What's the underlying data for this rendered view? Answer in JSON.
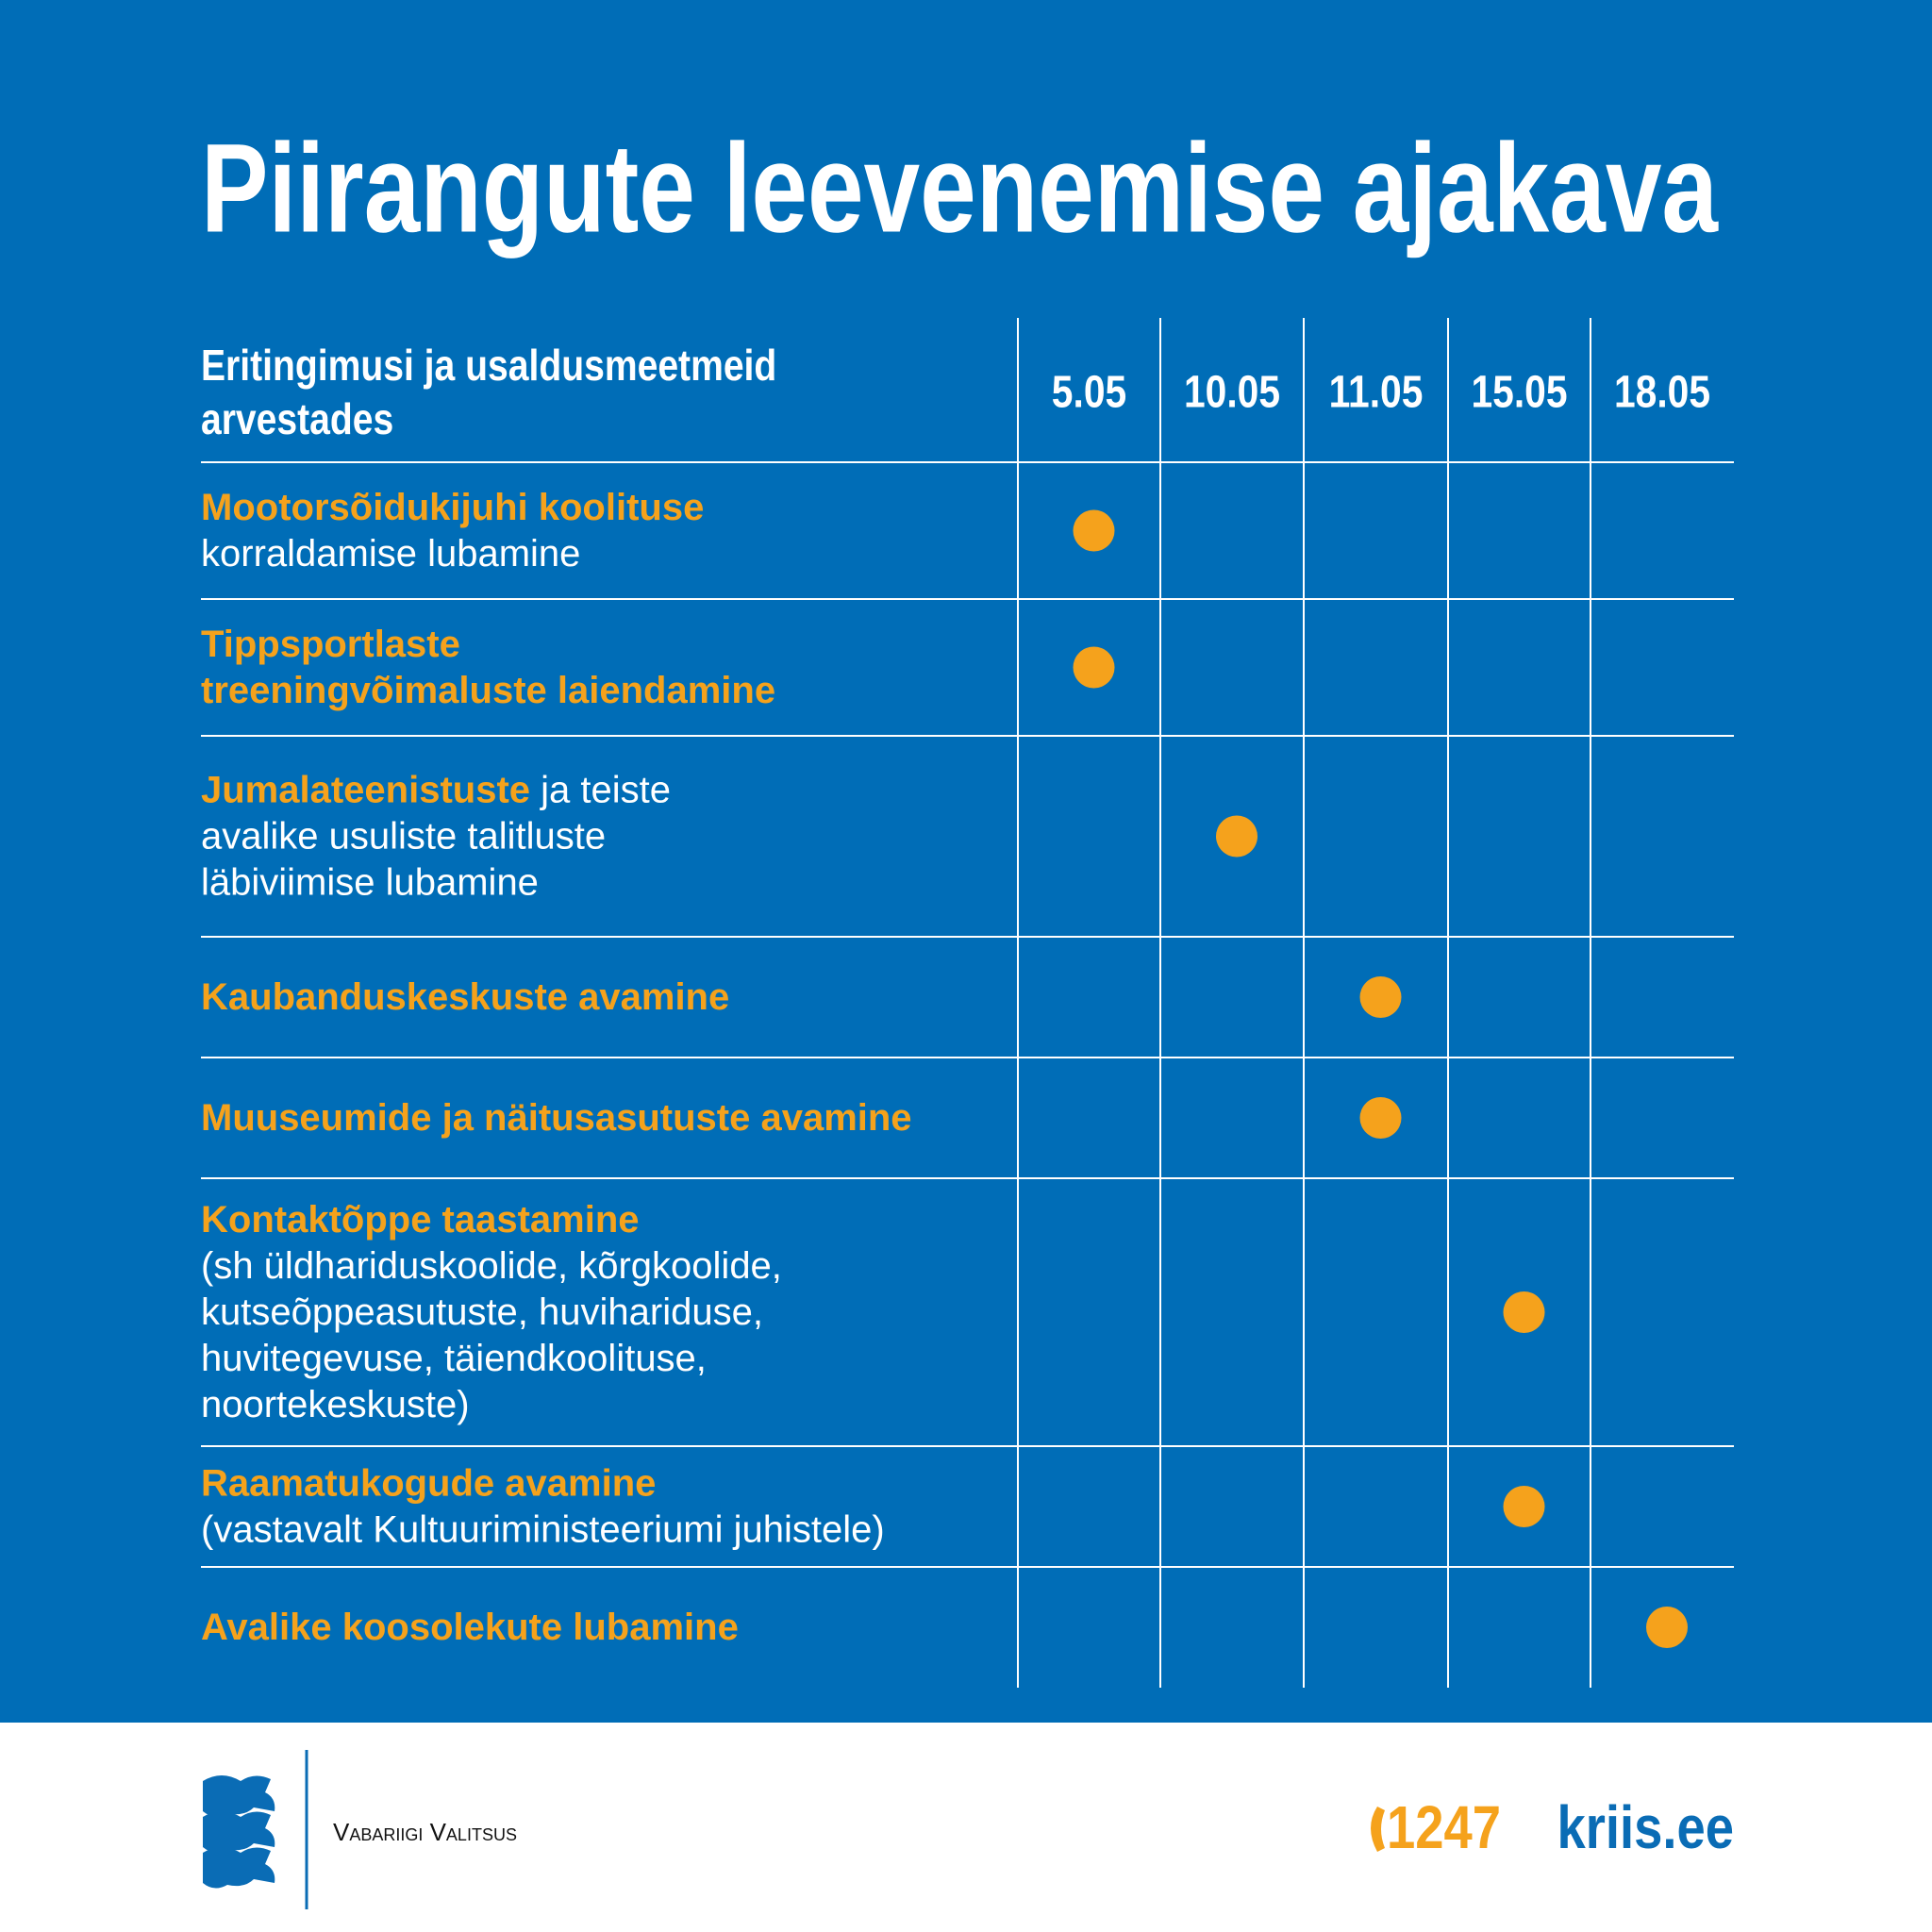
{
  "title": "Piirangute leevenemise ajakava",
  "table": {
    "header": {
      "label": [
        "Eritingimusi ja usaldusmeetmeid",
        "arvestades"
      ],
      "dates": [
        "5.05",
        "10.05",
        "11.05",
        "15.05",
        "18.05"
      ]
    },
    "rows": [
      {
        "lines": [
          [
            {
              "text": "Mootorsõidukijuhi koolituse",
              "accent": true
            }
          ],
          [
            {
              "text": "korraldamise lubamine",
              "accent": false
            }
          ]
        ],
        "marks": [
          true,
          false,
          false,
          false,
          false
        ]
      },
      {
        "lines": [
          [
            {
              "text": "Tippsportlaste",
              "accent": true
            }
          ],
          [
            {
              "text": "treeningvõimaluste laiendamine",
              "accent": true
            }
          ]
        ],
        "marks": [
          true,
          false,
          false,
          false,
          false
        ]
      },
      {
        "lines": [
          [
            {
              "text": "Jumalateenistuste",
              "accent": true
            },
            {
              "text": " ja teiste",
              "accent": false
            }
          ],
          [
            {
              "text": "avalike usuliste talitluste",
              "accent": false
            }
          ],
          [
            {
              "text": "läbiviimise lubamine",
              "accent": false
            }
          ]
        ],
        "marks": [
          false,
          true,
          false,
          false,
          false
        ]
      },
      {
        "lines": [
          [
            {
              "text": "Kaubanduskeskuste avamine",
              "accent": true
            }
          ]
        ],
        "marks": [
          false,
          false,
          true,
          false,
          false
        ]
      },
      {
        "lines": [
          [
            {
              "text": "Muuseumide ja näitusasutuste avamine",
              "accent": true
            }
          ]
        ],
        "marks": [
          false,
          false,
          true,
          false,
          false
        ]
      },
      {
        "lines": [
          [
            {
              "text": "Kontaktõppe taastamine",
              "accent": true
            }
          ],
          [
            {
              "text": "(sh üldhariduskoolide, kõrgkoolide,",
              "accent": false
            }
          ],
          [
            {
              "text": "kutseõppeasutuste, huvihariduse,",
              "accent": false
            }
          ],
          [
            {
              "text": "huvitegevuse, täiendkoolituse,",
              "accent": false
            }
          ],
          [
            {
              "text": "noortekeskuste)",
              "accent": false
            }
          ]
        ],
        "marks": [
          false,
          false,
          false,
          true,
          false
        ]
      },
      {
        "lines": [
          [
            {
              "text": "Raamatukogude avamine",
              "accent": true
            }
          ],
          [
            {
              "text": "(vastavalt Kultuuriministeeriumi juhistele)",
              "accent": false
            }
          ]
        ],
        "marks": [
          false,
          false,
          false,
          true,
          false
        ]
      },
      {
        "lines": [
          [
            {
              "text": "Avalike koosolekute lubamine",
              "accent": true
            }
          ]
        ],
        "marks": [
          false,
          false,
          false,
          false,
          true
        ]
      }
    ]
  },
  "footer": {
    "organization": "Vabariigi Valitsus",
    "phone": "1247",
    "website": "kriis.ee"
  }
}
